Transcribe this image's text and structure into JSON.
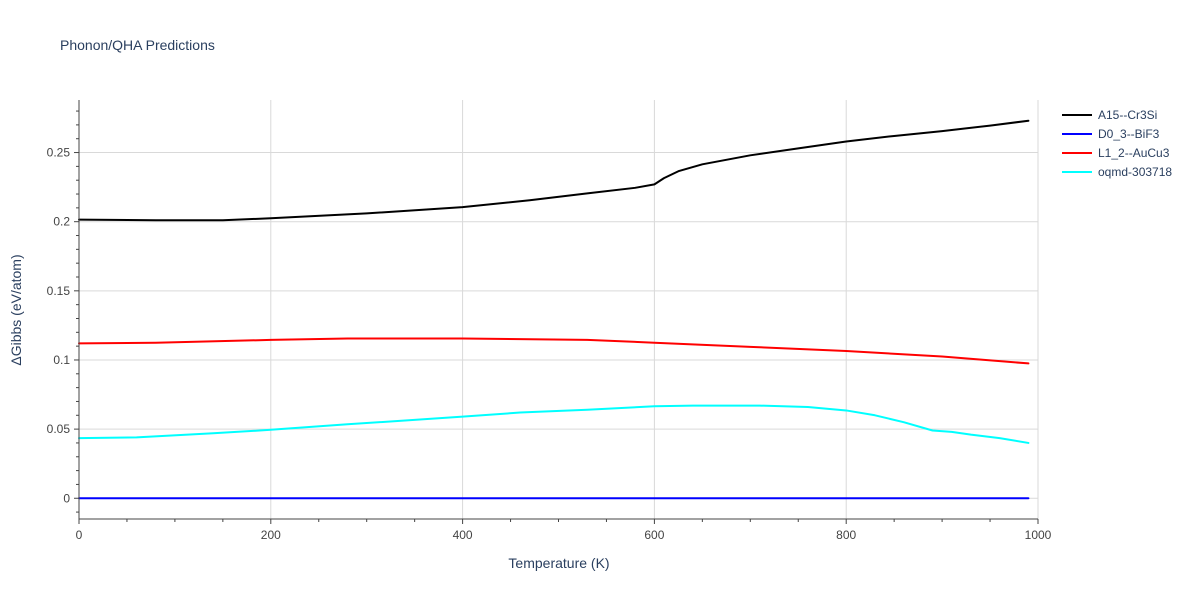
{
  "chart_data": {
    "type": "line",
    "title": "Phonon/QHA Predictions",
    "xlabel": "Temperature (K)",
    "ylabel": "ΔGibbs (eV/atom)",
    "xlim": [
      0,
      1000
    ],
    "ylim": [
      -0.015,
      0.288
    ],
    "xticks": [
      0,
      200,
      400,
      600,
      800,
      1000
    ],
    "xtick_labels": [
      "0",
      "200",
      "400",
      "600",
      "800",
      "1000"
    ],
    "yticks": [
      0,
      0.05,
      0.1,
      0.15,
      0.2,
      0.25
    ],
    "ytick_labels": [
      "0",
      "0.05",
      "0.1",
      "0.15",
      "0.2",
      "0.25"
    ],
    "grid": true,
    "legend_position": "top-right outside",
    "series": [
      {
        "name": "A15--Cr3Si",
        "color": "#000000",
        "x": [
          0,
          80,
          150,
          200,
          300,
          400,
          470,
          530,
          580,
          600,
          610,
          625,
          650,
          700,
          750,
          800,
          850,
          900,
          950,
          990
        ],
        "y": [
          0.2015,
          0.201,
          0.201,
          0.2025,
          0.206,
          0.2105,
          0.2155,
          0.2205,
          0.2245,
          0.227,
          0.2315,
          0.2365,
          0.2415,
          0.248,
          0.253,
          0.258,
          0.262,
          0.2655,
          0.2695,
          0.273
        ]
      },
      {
        "name": "D0_3--BiF3",
        "color": "#0000ff",
        "x": [
          0,
          990
        ],
        "y": [
          0,
          0
        ]
      },
      {
        "name": "L1_2--AuCu3",
        "color": "#ff0000",
        "x": [
          0,
          80,
          200,
          280,
          400,
          530,
          600,
          700,
          800,
          900,
          990
        ],
        "y": [
          0.112,
          0.1125,
          0.1145,
          0.1155,
          0.1155,
          0.1145,
          0.1125,
          0.1095,
          0.1065,
          0.1025,
          0.0975
        ]
      },
      {
        "name": "oqmd-303718",
        "color": "#00ffff",
        "x": [
          0,
          60,
          140,
          200,
          280,
          400,
          460,
          530,
          600,
          640,
          710,
          760,
          800,
          830,
          860,
          890,
          910,
          930,
          960,
          990
        ],
        "y": [
          0.0435,
          0.044,
          0.047,
          0.0495,
          0.0535,
          0.059,
          0.062,
          0.064,
          0.0665,
          0.067,
          0.067,
          0.066,
          0.0635,
          0.06,
          0.055,
          0.049,
          0.048,
          0.046,
          0.0435,
          0.04
        ]
      }
    ]
  }
}
